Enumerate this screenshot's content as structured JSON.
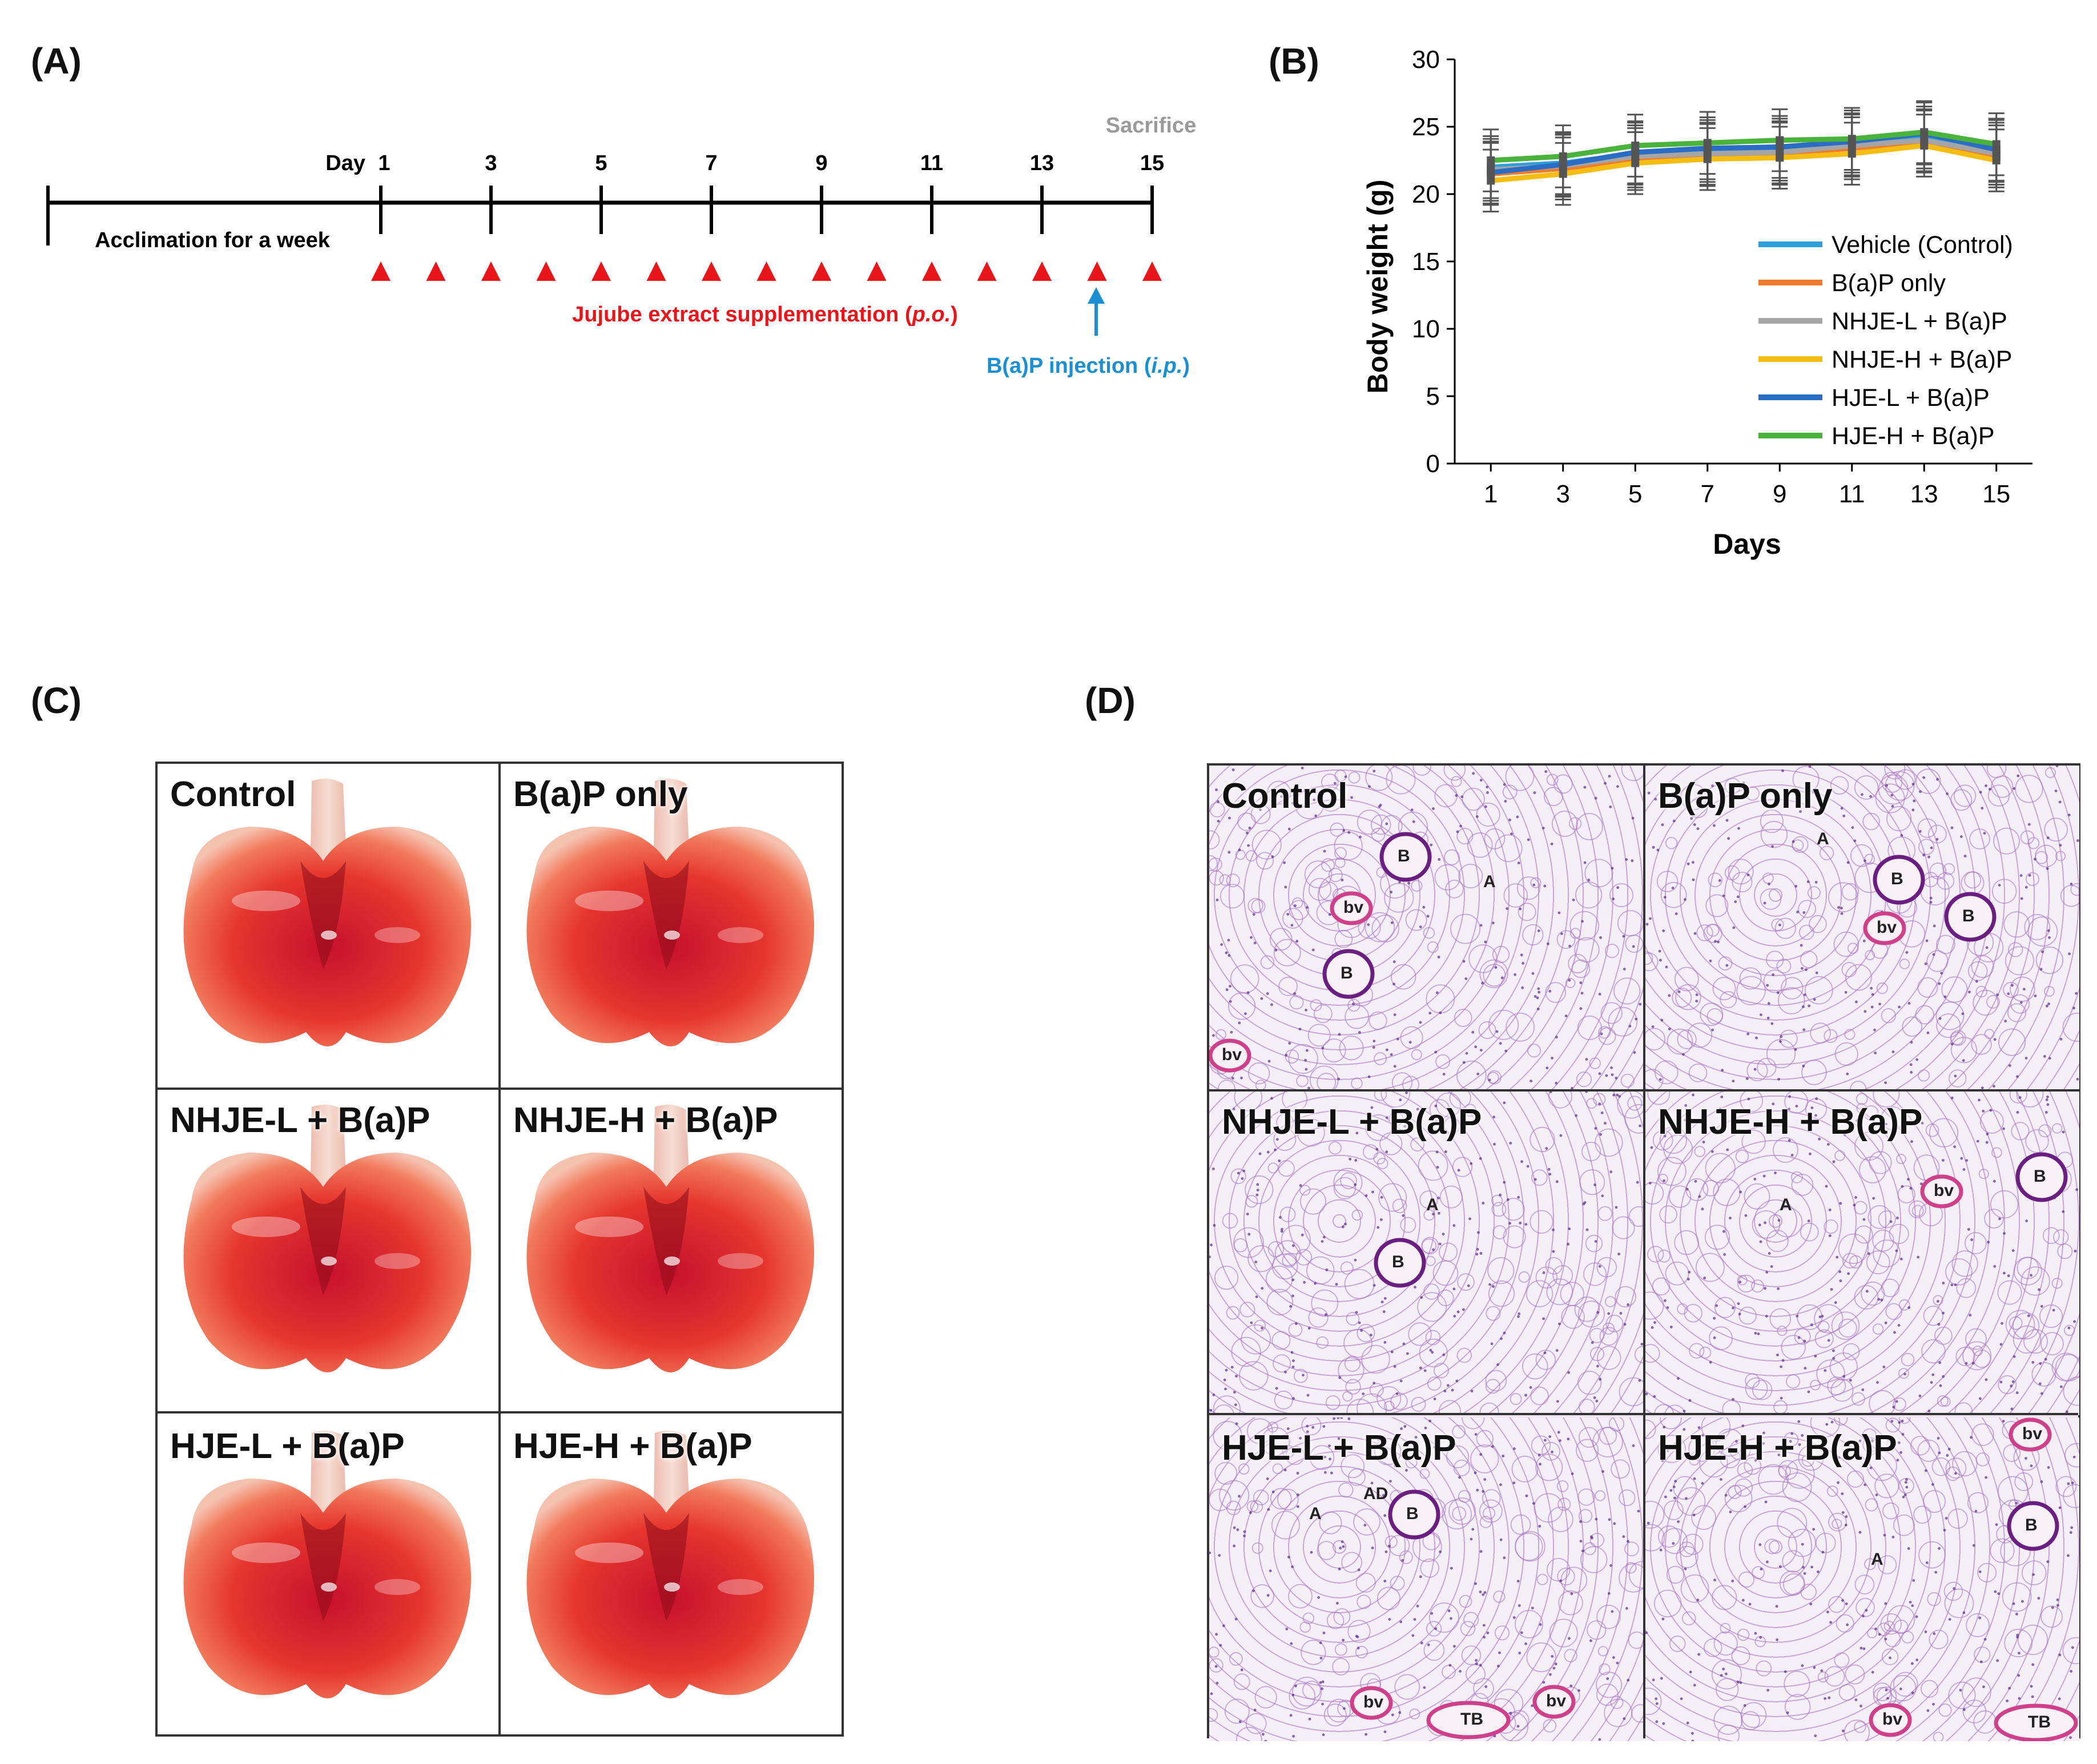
{
  "panels": {
    "a": {
      "label": "(A)",
      "day_prefix": "Day",
      "day_ticks": [
        "1",
        "3",
        "5",
        "7",
        "9",
        "11",
        "13",
        "15"
      ],
      "sacrifice": "Sacrifice",
      "acclimation": "Acclimation for a week",
      "supplementation_text": "Jujube extract supplementation",
      "supplementation_route": "p.o.",
      "injection_text": "B(a)P injection",
      "injection_route": "i.p.",
      "colors": {
        "triangle": "#e8161b",
        "injection": "#1a8fd1",
        "sacrifice": "#9a9a9a"
      }
    },
    "b": {
      "label": "(B)"
    },
    "c": {
      "label": "(C)",
      "cells": [
        "Control",
        "B(a)P only",
        "NHJE-L + B(a)P",
        "NHJE-H + B(a)P",
        "HJE-L + B(a)P",
        "HJE-H + B(a)P"
      ]
    },
    "d": {
      "label": "(D)",
      "cells": [
        "Control",
        "B(a)P only",
        "NHJE-L + B(a)P",
        "NHJE-H + B(a)P",
        "HJE-L + B(a)P",
        "HJE-H + B(a)P"
      ],
      "marks": {
        "a": "A",
        "b": "B",
        "bv": "bv",
        "ad": "AD",
        "tb": "TB"
      }
    }
  },
  "chart_data": {
    "type": "line",
    "xlabel": "Days",
    "ylabel": "Body weight (g)",
    "x": [
      1,
      3,
      5,
      7,
      9,
      11,
      13,
      15
    ],
    "ylim": [
      0,
      30
    ],
    "yticks": [
      0,
      5,
      10,
      15,
      20,
      25,
      30
    ],
    "legend_position": "bottom-right",
    "series": [
      {
        "name": "Vehicle (Control)",
        "color": "#2e9fd8",
        "values": [
          22.0,
          22.3,
          23.0,
          23.2,
          23.3,
          23.7,
          24.2,
          23.2
        ]
      },
      {
        "name": "B(a)P only",
        "color": "#f07b2a",
        "values": [
          21.5,
          21.9,
          22.6,
          22.9,
          23.0,
          23.4,
          23.9,
          22.8
        ]
      },
      {
        "name": "NHJE-L + B(a)P",
        "color": "#a5a5a5",
        "values": [
          21.8,
          22.1,
          22.8,
          23.0,
          23.1,
          23.6,
          24.0,
          23.0
        ]
      },
      {
        "name": "NHJE-H + B(a)P",
        "color": "#f5bd12",
        "values": [
          21.0,
          21.5,
          22.3,
          22.6,
          22.7,
          23.0,
          23.6,
          22.5
        ]
      },
      {
        "name": "HJE-L + B(a)P",
        "color": "#2b6cc4",
        "values": [
          21.6,
          22.2,
          23.1,
          23.4,
          23.5,
          23.9,
          24.5,
          23.3
        ]
      },
      {
        "name": "HJE-H + B(a)P",
        "color": "#4ab33c",
        "values": [
          22.5,
          22.8,
          23.6,
          23.8,
          24.0,
          24.1,
          24.6,
          23.7
        ]
      }
    ],
    "error_bar": 2.3,
    "error_bar_color": "#555555"
  }
}
